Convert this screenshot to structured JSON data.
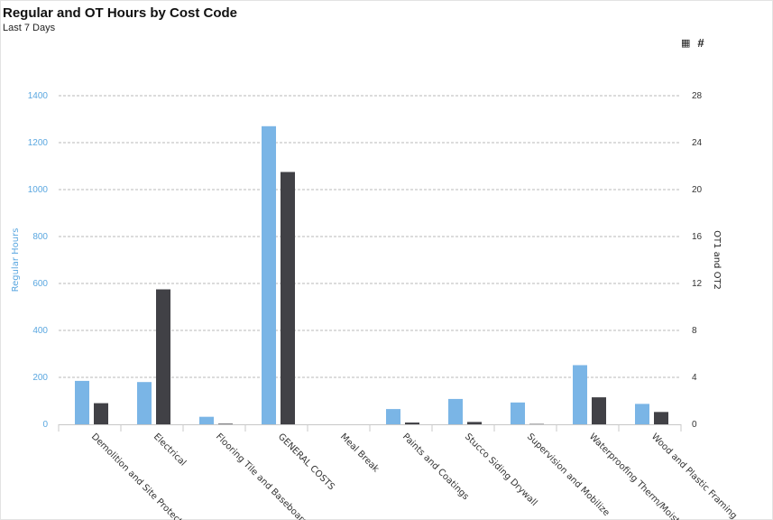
{
  "header": {
    "title": "Regular and OT Hours by Cost Code",
    "subtitle": "Last 7 Days"
  },
  "toolbar": {
    "table_icon": "table-icon",
    "table_glyph": "▦",
    "count_label": "#"
  },
  "colors": {
    "regular": "#7ab5e6",
    "ot": "#414146",
    "grid": "#b8b8b8",
    "left_axis_text": "#5aa7e0"
  },
  "chart_data": {
    "type": "bar",
    "categories": [
      "Demolition and Site Protectio",
      "Electrical",
      "Flooring Tile and Baseboard",
      "GENERAL COSTS",
      "Meal Break",
      "Paints and Coatings",
      "Stucco Siding Drywall",
      "Supervision and Mobilize",
      "Waterproofing Therm/Moist",
      "Wood and Plastic Framing"
    ],
    "series": [
      {
        "name": "Regular Hours",
        "axis": "left",
        "values": [
          185,
          180,
          32,
          1270,
          0,
          65,
          108,
          93,
          252,
          87
        ]
      },
      {
        "name": "OT1 and OT2",
        "axis": "right",
        "values": [
          1.8,
          11.5,
          0.05,
          21.5,
          0,
          0.15,
          0.2,
          0.03,
          2.3,
          1.05
        ]
      }
    ],
    "ylabel": "Regular Hours",
    "y2label": "OT1 and OT2",
    "ylim": [
      0,
      1400
    ],
    "y2lim": [
      0,
      28
    ],
    "yticks": [
      "0",
      "200",
      "400",
      "600",
      "800",
      "1000",
      "1200",
      "1400"
    ],
    "y2ticks": [
      "0",
      "4",
      "8",
      "12",
      "16",
      "20",
      "24",
      "28"
    ],
    "grid": true
  }
}
